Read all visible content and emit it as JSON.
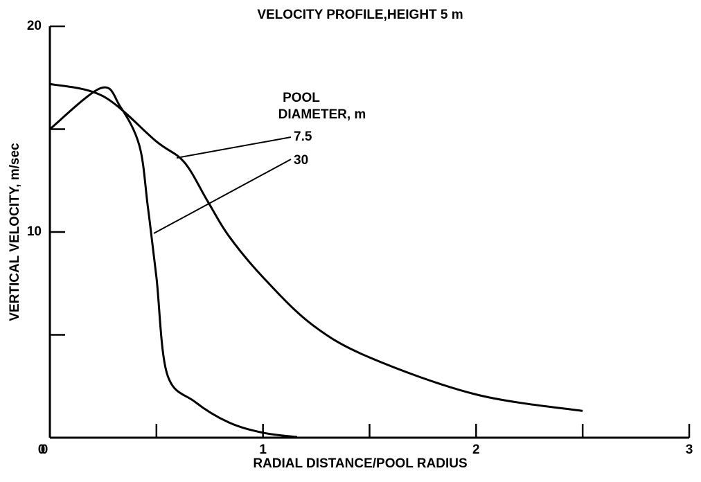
{
  "chart_data": {
    "type": "line",
    "title": "VELOCITY PROFILE,HEIGHT 5 m",
    "xlabel": "RADIAL DISTANCE/POOL RADIUS",
    "ylabel": "VERTICAL VELOCITY, m/sec",
    "legend_title": [
      "POOL",
      "DIAMETER, m"
    ],
    "xlim": [
      0,
      3
    ],
    "xticks": [
      0,
      1,
      2,
      3
    ],
    "xminor_ticks": [
      0.5,
      1.5,
      2.5
    ],
    "ylim": [
      0,
      20
    ],
    "yticks": [
      0,
      10,
      20
    ],
    "yminor_ticks": [
      5,
      15
    ],
    "series": [
      {
        "name": "7.5",
        "color": "#000000",
        "x": [
          0,
          0.25,
          0.5,
          0.63,
          0.74,
          0.84,
          1.0,
          1.23,
          1.5,
          2.0,
          2.5
        ],
        "values": [
          17.2,
          16.6,
          14.4,
          13.4,
          11.5,
          9.8,
          7.8,
          5.5,
          3.9,
          2.1,
          1.3
        ]
      },
      {
        "name": "30",
        "color": "#000000",
        "x": [
          0,
          0.24,
          0.33,
          0.42,
          0.46,
          0.5,
          0.55,
          0.68,
          0.84,
          1.0,
          1.16
        ],
        "values": [
          15,
          17.0,
          16.1,
          14.2,
          11.2,
          7.8,
          3.1,
          1.75,
          0.74,
          0.24,
          0.03
        ]
      }
    ]
  }
}
